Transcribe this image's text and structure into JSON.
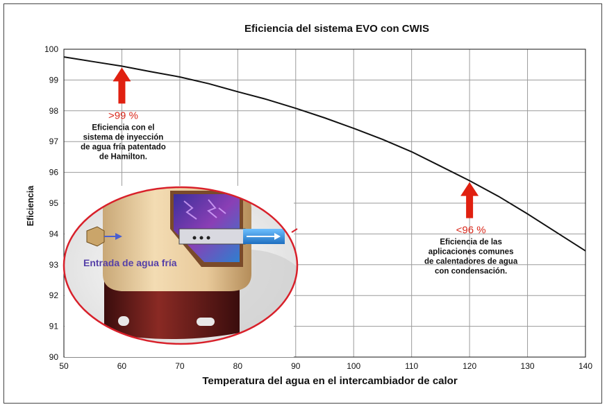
{
  "chart_data": {
    "type": "line",
    "title": "Eficiencia del sistema EVO con CWIS",
    "xlabel": "Temperatura del agua en el intercambiador de calor",
    "ylabel": "Eficiencia",
    "xlim": [
      50,
      140
    ],
    "ylim": [
      90,
      100
    ],
    "xticks": [
      "50",
      "60",
      "70",
      "80",
      "90",
      "100",
      "110",
      "120",
      "130",
      "140"
    ],
    "yticks": [
      "90",
      "91",
      "92",
      "93",
      "94",
      "95",
      "96",
      "97",
      "98",
      "99",
      "100"
    ],
    "grid": true,
    "series": [
      {
        "x": [
          50,
          55,
          60,
          65,
          70,
          75,
          80,
          85,
          90,
          95,
          100,
          105,
          110,
          115,
          120,
          125,
          130,
          135,
          140
        ],
        "y": [
          99.75,
          99.6,
          99.45,
          99.27,
          99.1,
          98.88,
          98.62,
          98.37,
          98.08,
          97.77,
          97.43,
          97.07,
          96.67,
          96.2,
          95.73,
          95.22,
          94.65,
          94.05,
          93.45
        ],
        "color": "#111111"
      }
    ],
    "annotations": [
      {
        "x": 60,
        "y": 99.45,
        "value_text": ">99 %",
        "lines": [
          "Eficiencia con el",
          "sistema de inyección",
          "de agua fría patentado",
          "de Hamilton."
        ],
        "arrow_color": "#e02010"
      },
      {
        "x": 120,
        "y": 95.73,
        "value_text": "<96 %",
        "lines": [
          "Eficiencia de las",
          "aplicaciones comunes",
          "de calentadores de agua",
          "con condensación."
        ],
        "arrow_color": "#e02010"
      }
    ]
  },
  "inset": {
    "label": "Entrada de agua fría",
    "outline_color": "#d8202a"
  }
}
